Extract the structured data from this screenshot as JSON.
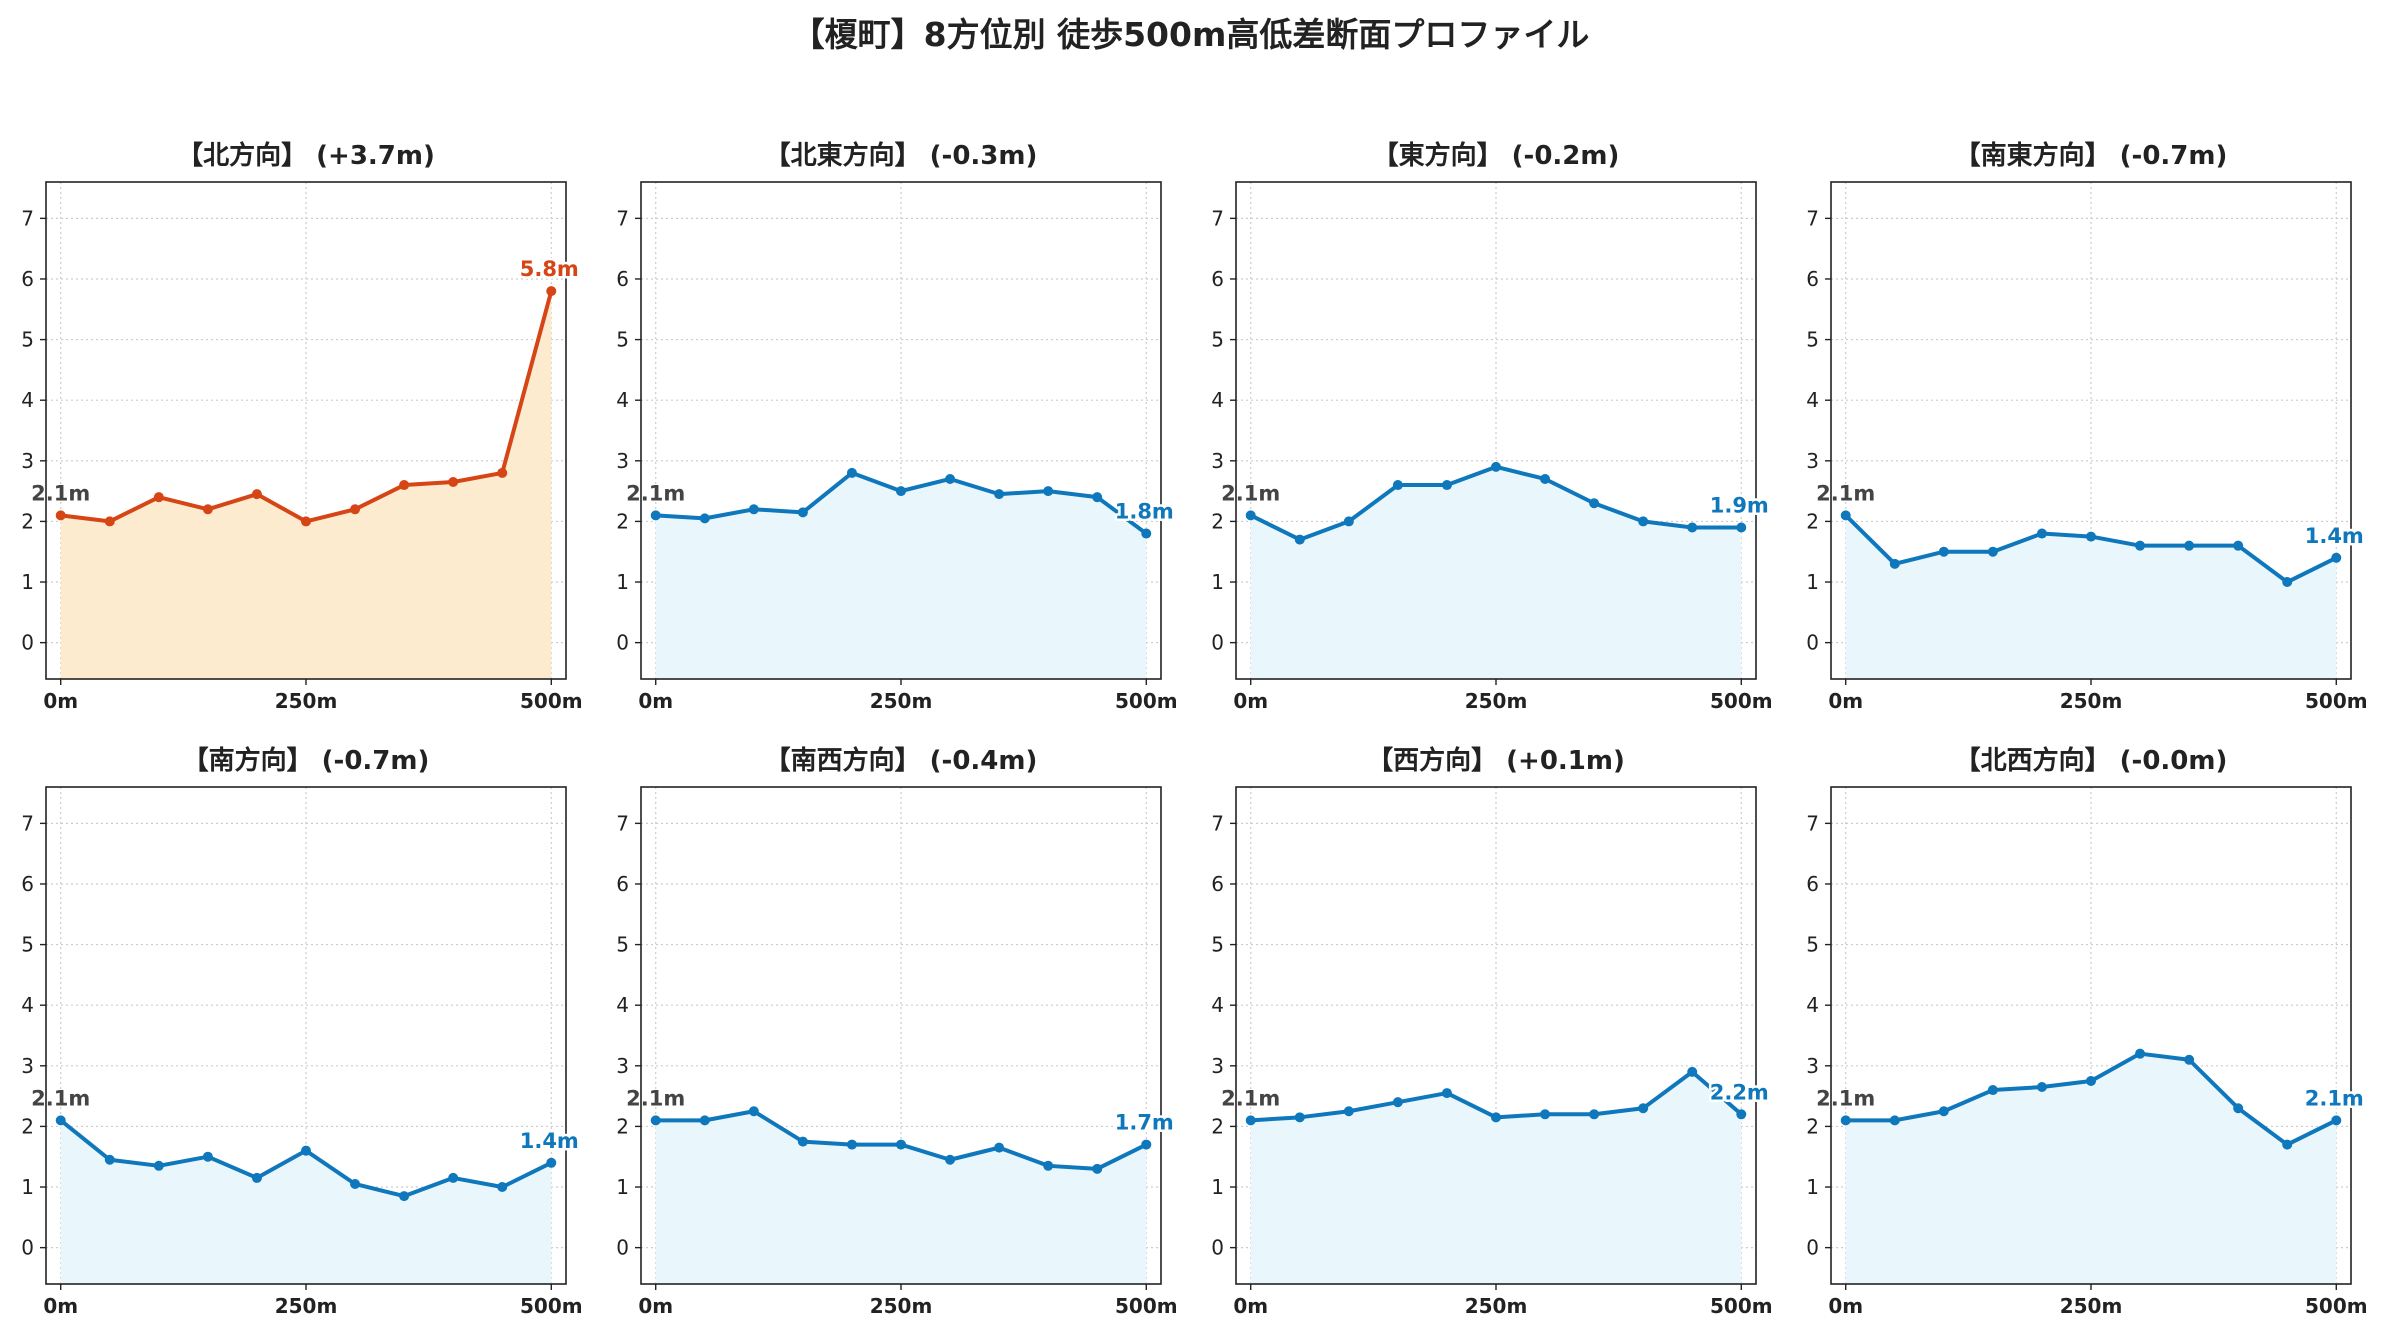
{
  "title": "【榎町】8方位別 徒歩500m高低差断面プロファイル",
  "colors": {
    "up_line": "#d64515",
    "up_fill": "#fdebd0",
    "down_line": "#0f77bb",
    "down_fill": "#e9f6fb",
    "start_label": "#444444"
  },
  "chart_data": [
    {
      "type": "area",
      "title": "【北方向】 (+3.7m)",
      "trend": "up",
      "x": [
        0,
        50,
        100,
        150,
        200,
        250,
        300,
        350,
        400,
        450,
        500
      ],
      "y": [
        2.1,
        2.0,
        2.4,
        2.2,
        2.45,
        2.0,
        2.2,
        2.6,
        2.65,
        2.8,
        5.8
      ],
      "start_label": "2.1m",
      "end_label": "5.8m",
      "xticks": [
        {
          "value": 0,
          "label": "0m"
        },
        {
          "value": 250,
          "label": "250m"
        },
        {
          "value": 500,
          "label": "500m"
        }
      ],
      "yticks": [
        0,
        1,
        2,
        3,
        4,
        5,
        6,
        7
      ],
      "xlim": [
        -15,
        515
      ],
      "ylim": [
        -0.6,
        7.6
      ],
      "grid": true
    },
    {
      "type": "area",
      "title": "【北東方向】 (-0.3m)",
      "trend": "down",
      "x": [
        0,
        50,
        100,
        150,
        200,
        250,
        300,
        350,
        400,
        450,
        500
      ],
      "y": [
        2.1,
        2.05,
        2.2,
        2.15,
        2.8,
        2.5,
        2.7,
        2.45,
        2.5,
        2.4,
        1.8
      ],
      "start_label": "2.1m",
      "end_label": "1.8m",
      "xticks": [
        {
          "value": 0,
          "label": "0m"
        },
        {
          "value": 250,
          "label": "250m"
        },
        {
          "value": 500,
          "label": "500m"
        }
      ],
      "yticks": [
        0,
        1,
        2,
        3,
        4,
        5,
        6,
        7
      ],
      "xlim": [
        -15,
        515
      ],
      "ylim": [
        -0.6,
        7.6
      ],
      "grid": true
    },
    {
      "type": "area",
      "title": "【東方向】 (-0.2m)",
      "trend": "down",
      "x": [
        0,
        50,
        100,
        150,
        200,
        250,
        300,
        350,
        400,
        450,
        500
      ],
      "y": [
        2.1,
        1.7,
        2.0,
        2.6,
        2.6,
        2.9,
        2.7,
        2.3,
        2.0,
        1.9,
        1.9
      ],
      "start_label": "2.1m",
      "end_label": "1.9m",
      "xticks": [
        {
          "value": 0,
          "label": "0m"
        },
        {
          "value": 250,
          "label": "250m"
        },
        {
          "value": 500,
          "label": "500m"
        }
      ],
      "yticks": [
        0,
        1,
        2,
        3,
        4,
        5,
        6,
        7
      ],
      "xlim": [
        -15,
        515
      ],
      "ylim": [
        -0.6,
        7.6
      ],
      "grid": true
    },
    {
      "type": "area",
      "title": "【南東方向】 (-0.7m)",
      "trend": "down",
      "x": [
        0,
        50,
        100,
        150,
        200,
        250,
        300,
        350,
        400,
        450,
        500
      ],
      "y": [
        2.1,
        1.3,
        1.5,
        1.5,
        1.8,
        1.75,
        1.6,
        1.6,
        1.6,
        1.0,
        1.4
      ],
      "start_label": "2.1m",
      "end_label": "1.4m",
      "xticks": [
        {
          "value": 0,
          "label": "0m"
        },
        {
          "value": 250,
          "label": "250m"
        },
        {
          "value": 500,
          "label": "500m"
        }
      ],
      "yticks": [
        0,
        1,
        2,
        3,
        4,
        5,
        6,
        7
      ],
      "xlim": [
        -15,
        515
      ],
      "ylim": [
        -0.6,
        7.6
      ],
      "grid": true
    },
    {
      "type": "area",
      "title": "【南方向】 (-0.7m)",
      "trend": "down",
      "x": [
        0,
        50,
        100,
        150,
        200,
        250,
        300,
        350,
        400,
        450,
        500
      ],
      "y": [
        2.1,
        1.45,
        1.35,
        1.5,
        1.15,
        1.6,
        1.05,
        0.85,
        1.15,
        1.0,
        1.4
      ],
      "start_label": "2.1m",
      "end_label": "1.4m",
      "xticks": [
        {
          "value": 0,
          "label": "0m"
        },
        {
          "value": 250,
          "label": "250m"
        },
        {
          "value": 500,
          "label": "500m"
        }
      ],
      "yticks": [
        0,
        1,
        2,
        3,
        4,
        5,
        6,
        7
      ],
      "xlim": [
        -15,
        515
      ],
      "ylim": [
        -0.6,
        7.6
      ],
      "grid": true
    },
    {
      "type": "area",
      "title": "【南西方向】 (-0.4m)",
      "trend": "down",
      "x": [
        0,
        50,
        100,
        150,
        200,
        250,
        300,
        350,
        400,
        450,
        500
      ],
      "y": [
        2.1,
        2.1,
        2.25,
        1.75,
        1.7,
        1.7,
        1.45,
        1.65,
        1.35,
        1.3,
        1.7
      ],
      "start_label": "2.1m",
      "end_label": "1.7m",
      "xticks": [
        {
          "value": 0,
          "label": "0m"
        },
        {
          "value": 250,
          "label": "250m"
        },
        {
          "value": 500,
          "label": "500m"
        }
      ],
      "yticks": [
        0,
        1,
        2,
        3,
        4,
        5,
        6,
        7
      ],
      "xlim": [
        -15,
        515
      ],
      "ylim": [
        -0.6,
        7.6
      ],
      "grid": true
    },
    {
      "type": "area",
      "title": "【西方向】 (+0.1m)",
      "trend": "down",
      "x": [
        0,
        50,
        100,
        150,
        200,
        250,
        300,
        350,
        400,
        450,
        500
      ],
      "y": [
        2.1,
        2.15,
        2.25,
        2.4,
        2.55,
        2.15,
        2.2,
        2.2,
        2.3,
        2.9,
        2.2
      ],
      "start_label": "2.1m",
      "end_label": "2.2m",
      "xticks": [
        {
          "value": 0,
          "label": "0m"
        },
        {
          "value": 250,
          "label": "250m"
        },
        {
          "value": 500,
          "label": "500m"
        }
      ],
      "yticks": [
        0,
        1,
        2,
        3,
        4,
        5,
        6,
        7
      ],
      "xlim": [
        -15,
        515
      ],
      "ylim": [
        -0.6,
        7.6
      ],
      "grid": true
    },
    {
      "type": "area",
      "title": "【北西方向】 (-0.0m)",
      "trend": "down",
      "x": [
        0,
        50,
        100,
        150,
        200,
        250,
        300,
        350,
        400,
        450,
        500
      ],
      "y": [
        2.1,
        2.1,
        2.25,
        2.6,
        2.65,
        2.75,
        3.2,
        3.1,
        2.3,
        1.7,
        2.1
      ],
      "start_label": "2.1m",
      "end_label": "2.1m",
      "xticks": [
        {
          "value": 0,
          "label": "0m"
        },
        {
          "value": 250,
          "label": "250m"
        },
        {
          "value": 500,
          "label": "500m"
        }
      ],
      "yticks": [
        0,
        1,
        2,
        3,
        4,
        5,
        6,
        7
      ],
      "xlim": [
        -15,
        515
      ],
      "ylim": [
        -0.6,
        7.6
      ],
      "grid": true
    }
  ]
}
